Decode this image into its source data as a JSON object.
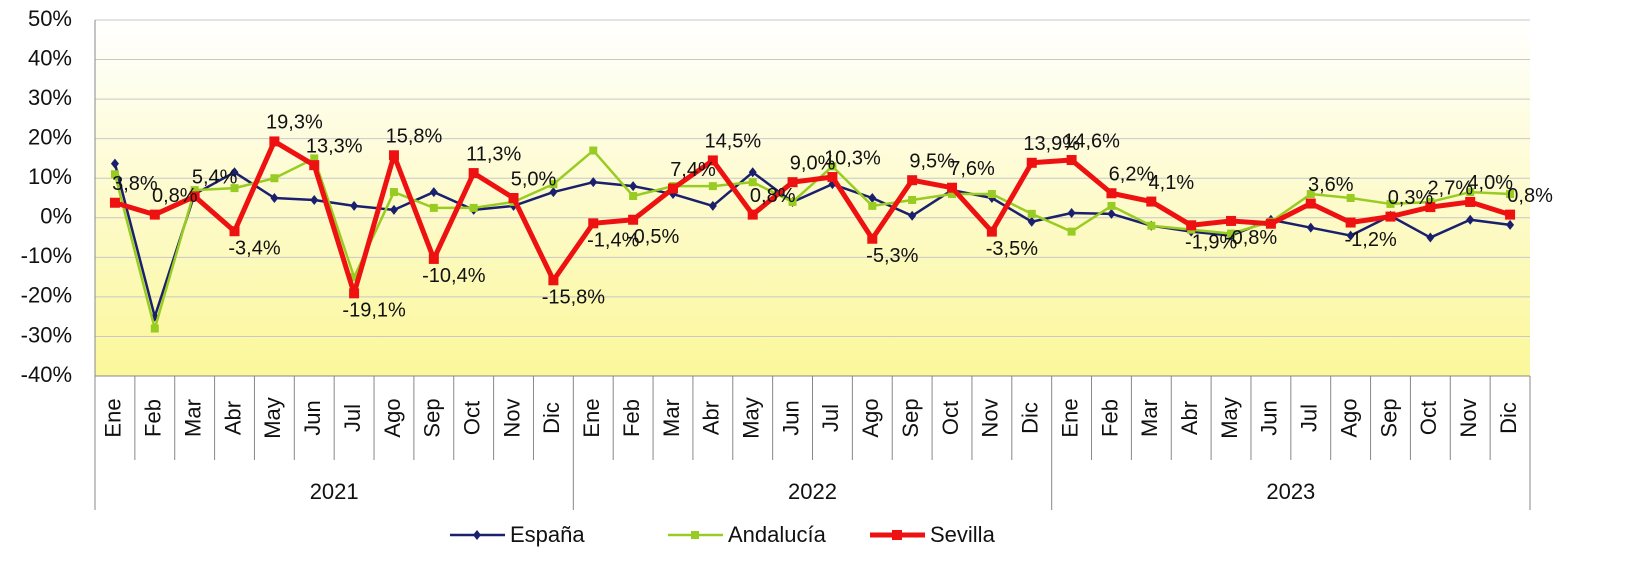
{
  "chart_data": {
    "type": "line",
    "categories": [
      "Ene",
      "Feb",
      "Mar",
      "Abr",
      "May",
      "Jun",
      "Jul",
      "Ago",
      "Sep",
      "Oct",
      "Nov",
      "Dic",
      "Ene",
      "Feb",
      "Mar",
      "Abr",
      "May",
      "Jun",
      "Jul",
      "Ago",
      "Sep",
      "Oct",
      "Nov",
      "Dic",
      "Ene",
      "Feb",
      "Mar",
      "Abr",
      "May",
      "Jun",
      "Jul",
      "Ago",
      "Sep",
      "Oct",
      "Nov",
      "Dic"
    ],
    "x_groups": [
      "2021",
      "2022",
      "2023"
    ],
    "ylim": [
      -40,
      50
    ],
    "yticks": [
      {
        "value": -40,
        "label": "-40%"
      },
      {
        "value": -30,
        "label": "-30%"
      },
      {
        "value": -20,
        "label": "-20%"
      },
      {
        "value": -10,
        "label": "-10%"
      },
      {
        "value": 0,
        "label": "0%"
      },
      {
        "value": 10,
        "label": "10%"
      },
      {
        "value": 20,
        "label": "20%"
      },
      {
        "value": 30,
        "label": "30%"
      },
      {
        "value": 40,
        "label": "40%"
      },
      {
        "value": 50,
        "label": "50%"
      }
    ],
    "grid": true,
    "legend": "bottom",
    "series": [
      {
        "name": "España",
        "color": "#1a1f6e",
        "marker": "diamond",
        "width": 2.5,
        "values": [
          13.7,
          -25,
          6,
          11.5,
          5,
          4.5,
          3,
          2,
          6.5,
          2,
          3,
          6.5,
          9,
          8,
          6,
          3,
          11.5,
          4,
          8.5,
          5,
          0.5,
          7,
          5,
          -1,
          1.2,
          1,
          -2,
          -3.5,
          -4.5,
          -0.5,
          -2.5,
          -4.5,
          0.5,
          -5,
          -0.5,
          -1.8
        ]
      },
      {
        "name": "Andalucía",
        "color": "#99cc22",
        "marker": "square",
        "width": 2.5,
        "values": [
          11,
          -28,
          7,
          7.5,
          10,
          15,
          -15,
          6.5,
          2.5,
          2.5,
          4,
          8.5,
          17,
          5.5,
          8,
          8,
          9,
          4,
          13,
          3,
          4.5,
          6,
          6,
          1,
          -3.5,
          3,
          -2,
          -3,
          -4,
          -1,
          6,
          5,
          3.5,
          4,
          6.5,
          6
        ]
      },
      {
        "name": "Sevilla",
        "color": "#ee1111",
        "marker": "square",
        "width": 5,
        "values": [
          3.8,
          0.8,
          5.4,
          -3.4,
          19.3,
          13.3,
          -19.1,
          15.8,
          -10.4,
          11.3,
          5.0,
          -15.8,
          -1.4,
          -0.5,
          7.4,
          14.5,
          0.8,
          9.0,
          10.3,
          -5.3,
          9.5,
          7.6,
          -3.5,
          13.9,
          14.6,
          6.2,
          4.1,
          -1.9,
          -0.8,
          -1.5,
          3.6,
          -1.2,
          0.3,
          2.7,
          4.0,
          0.8
        ],
        "value_labels": [
          "3,8%",
          "0,8%",
          "5,4%",
          "-3,4%",
          "19,3%",
          "13,3%",
          "-19,1%",
          "15,8%",
          "-10,4%",
          "11,3%",
          "5,0%",
          "-15,8%",
          "-1,4%",
          "-0,5%",
          "7,4%",
          "14,5%",
          "0,8%",
          "9,0%",
          "10,3%",
          "-5,3%",
          "9,5%",
          "7,6%",
          "-3,5%",
          "13,9%",
          "14,6%",
          "6,2%",
          "4,1%",
          "-1,9%",
          "-0,8%",
          null,
          "3,6%",
          "-1,2%",
          "0,3%",
          "2,7%",
          "4,0%",
          "0,8%"
        ]
      }
    ]
  }
}
